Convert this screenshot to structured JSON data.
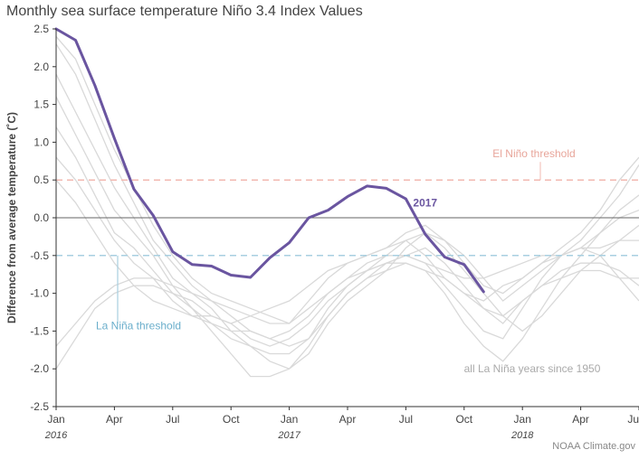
{
  "chart_data": {
    "type": "line",
    "title": "Monthly sea surface temperature Niño 3.4 Index Values",
    "ylabel": "Difference from average temperature (˚C)",
    "xlabel": "",
    "ylim": [
      -2.5,
      2.5
    ],
    "y_ticks": [
      "2.5",
      "2.0",
      "1.5",
      "1.0",
      "0.5",
      "0.0",
      "-0.5",
      "-1.0",
      "-1.5",
      "-2.0",
      "-2.5"
    ],
    "x_ticks": [
      {
        "month": 0,
        "label": "Jan",
        "year": "2016"
      },
      {
        "month": 3,
        "label": "Apr",
        "year": ""
      },
      {
        "month": 6,
        "label": "Jul",
        "year": ""
      },
      {
        "month": 9,
        "label": "Oct",
        "year": ""
      },
      {
        "month": 12,
        "label": "Jan",
        "year": "2017"
      },
      {
        "month": 15,
        "label": "Apr",
        "year": ""
      },
      {
        "month": 18,
        "label": "Jul",
        "year": ""
      },
      {
        "month": 21,
        "label": "Oct",
        "year": ""
      },
      {
        "month": 24,
        "label": "Jan",
        "year": "2018"
      },
      {
        "month": 27,
        "label": "Apr",
        "year": ""
      },
      {
        "month": 30,
        "label": "Ju",
        "year": ""
      }
    ],
    "xlim": [
      0,
      30
    ],
    "thresholds": [
      {
        "value": 0.5,
        "label": "El Niño threshold",
        "color": "#f2b8b0"
      },
      {
        "value": -0.5,
        "label": "La Niña threshold",
        "color": "#a8cfe0"
      }
    ],
    "highlight": {
      "name": "2017",
      "color": "#6a55a0",
      "values": [
        2.5,
        2.35,
        1.75,
        1.05,
        0.38,
        0.03,
        -0.45,
        -0.62,
        -0.64,
        -0.76,
        -0.79,
        -0.53,
        -0.33,
        0.0,
        0.1,
        0.28,
        0.42,
        0.39,
        0.25,
        -0.22,
        -0.52,
        -0.62,
        -0.98
      ]
    },
    "background_label": "all La Niña years since 1950",
    "background_color": "#d9d9d9",
    "background_series": [
      {
        "values": [
          2.4,
          2.1,
          1.5,
          0.9,
          0.4,
          -0.1,
          -0.5,
          -0.8,
          -1.0,
          -1.1,
          -1.2,
          -1.3,
          -1.4,
          -1.1,
          -0.8,
          -0.6,
          -0.5,
          -0.4,
          -0.3,
          -0.5,
          -0.8,
          -1.0,
          -1.1,
          -0.9,
          -0.8,
          -0.6,
          -0.4,
          -0.2,
          0.1,
          0.5,
          0.8
        ]
      },
      {
        "values": [
          2.3,
          1.9,
          1.3,
          0.7,
          0.2,
          -0.3,
          -0.6,
          -0.9,
          -1.1,
          -1.3,
          -1.5,
          -1.6,
          -1.7,
          -1.6,
          -1.2,
          -0.9,
          -0.7,
          -0.6,
          -0.5,
          -0.6,
          -0.9,
          -1.2,
          -1.5,
          -1.6,
          -1.2,
          -0.8,
          -0.5,
          -0.3,
          0.0,
          0.3,
          0.7
        ]
      },
      {
        "values": [
          1.9,
          1.4,
          0.9,
          0.4,
          0.0,
          -0.4,
          -0.8,
          -1.0,
          -1.2,
          -1.5,
          -1.7,
          -1.9,
          -2.0,
          -1.7,
          -1.3,
          -1.0,
          -0.8,
          -0.6,
          -0.6,
          -0.7,
          -1.0,
          -1.4,
          -1.7,
          -1.9,
          -1.6,
          -1.2,
          -0.8,
          -0.5,
          -0.2,
          0.1,
          0.3
        ]
      },
      {
        "values": [
          1.6,
          1.1,
          0.6,
          0.1,
          -0.2,
          -0.5,
          -0.9,
          -1.2,
          -1.5,
          -1.8,
          -2.1,
          -2.1,
          -2.0,
          -1.8,
          -1.4,
          -1.1,
          -0.9,
          -0.7,
          -0.4,
          -0.2,
          -0.4,
          -0.7,
          -1.0,
          -1.3,
          -1.5,
          -1.3,
          -1.0,
          -0.7,
          -0.5,
          -0.3,
          -0.1
        ]
      },
      {
        "values": [
          1.2,
          0.8,
          0.3,
          -0.2,
          -0.4,
          -0.7,
          -1.0,
          -1.1,
          -1.3,
          -1.4,
          -1.6,
          -1.7,
          -1.6,
          -1.4,
          -1.1,
          -0.9,
          -0.7,
          -0.5,
          -0.3,
          -0.2,
          -0.3,
          -0.5,
          -0.8,
          -1.1,
          -0.9,
          -0.7,
          -0.5,
          -0.4,
          -0.2,
          0.0,
          0.1
        ]
      },
      {
        "values": [
          0.8,
          0.5,
          0.1,
          -0.3,
          -0.6,
          -0.8,
          -1.1,
          -1.3,
          -1.4,
          -1.5,
          -1.5,
          -1.6,
          -1.5,
          -1.3,
          -1.0,
          -0.8,
          -0.7,
          -0.6,
          -0.5,
          -0.4,
          -0.6,
          -0.9,
          -1.2,
          -1.4,
          -1.1,
          -0.9,
          -0.7,
          -0.6,
          -0.6,
          -0.7,
          -0.9
        ]
      },
      {
        "values": [
          0.5,
          0.2,
          -0.2,
          -0.6,
          -0.9,
          -1.1,
          -1.2,
          -1.3,
          -1.3,
          -1.4,
          -1.3,
          -1.2,
          -1.1,
          -0.9,
          -0.7,
          -0.6,
          -0.5,
          -0.4,
          -0.2,
          -0.1,
          -0.3,
          -0.6,
          -0.9,
          -1.0,
          -0.8,
          -0.6,
          -0.5,
          -0.4,
          -0.5,
          -0.8,
          -1.1
        ]
      },
      {
        "values": [
          -1.7,
          -1.4,
          -1.1,
          -0.9,
          -0.8,
          -0.8,
          -0.9,
          -1.0,
          -1.1,
          -1.2,
          -1.3,
          -1.4,
          -1.4,
          -1.2,
          -1.0,
          -0.8,
          -0.6,
          -0.5,
          -0.5,
          -0.6,
          -0.7,
          -0.8,
          -0.8,
          -0.7,
          -0.6,
          -0.5,
          -0.5,
          -0.4,
          -0.4,
          -0.3,
          -0.3
        ]
      },
      {
        "values": [
          -2.0,
          -1.6,
          -1.2,
          -1.0,
          -0.9,
          -0.9,
          -1.0,
          -1.2,
          -1.4,
          -1.6,
          -1.7,
          -1.8,
          -1.8,
          -1.6,
          -1.3,
          -1.0,
          -0.8,
          -0.7,
          -0.6,
          -0.7,
          -0.8,
          -1.0,
          -1.2,
          -1.3,
          -1.1,
          -0.9,
          -0.8,
          -0.7,
          -0.7,
          -0.8,
          -0.8
        ]
      }
    ],
    "credit": "NOAA Climate.gov"
  }
}
